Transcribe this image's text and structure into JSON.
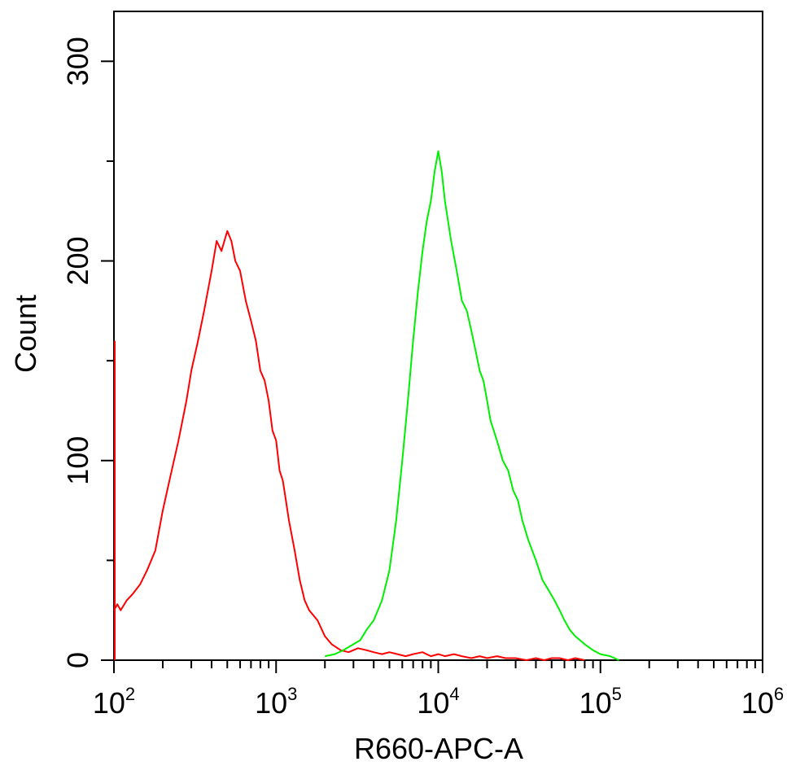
{
  "chart_data": {
    "type": "line",
    "title": "",
    "xlabel": "R660-APC-A",
    "ylabel": "Count",
    "x_scale": "log",
    "xlim": [
      100,
      1000000
    ],
    "ylim": [
      0,
      325
    ],
    "grid": false,
    "legend": "none",
    "x_ticks": [
      {
        "base": "10",
        "exp": "2",
        "value": 100
      },
      {
        "base": "10",
        "exp": "3",
        "value": 1000
      },
      {
        "base": "10",
        "exp": "4",
        "value": 10000
      },
      {
        "base": "10",
        "exp": "5",
        "value": 100000
      },
      {
        "base": "10",
        "exp": "6",
        "value": 1000000
      }
    ],
    "y_ticks": [
      {
        "label": "0",
        "value": 0
      },
      {
        "label": "100",
        "value": 100
      },
      {
        "label": "200",
        "value": 200
      },
      {
        "label": "300",
        "value": 300
      }
    ],
    "series": [
      {
        "color": "#ff0000",
        "x": [
          100,
          105,
          110,
          120,
          130,
          145,
          160,
          180,
          200,
          220,
          250,
          280,
          300,
          330,
          360,
          400,
          430,
          460,
          500,
          530,
          560,
          600,
          650,
          700,
          750,
          800,
          850,
          900,
          950,
          1000,
          1050,
          1100,
          1150,
          1200,
          1300,
          1400,
          1500,
          1600,
          1800,
          2000,
          2200,
          2500,
          2800,
          3200,
          3600,
          4000,
          4500,
          5000,
          5600,
          6300,
          7000,
          8000,
          9000,
          10000,
          11000,
          12500,
          14000,
          16000,
          18000,
          20000,
          23000,
          26000,
          30000,
          35000,
          40000,
          45000,
          50000,
          56000,
          63000,
          70000,
          80000
        ],
        "y": [
          25,
          28,
          25,
          30,
          33,
          38,
          45,
          55,
          75,
          90,
          110,
          130,
          145,
          160,
          175,
          195,
          210,
          205,
          215,
          210,
          200,
          195,
          180,
          170,
          160,
          145,
          140,
          130,
          115,
          110,
          95,
          90,
          80,
          70,
          55,
          40,
          30,
          25,
          20,
          12,
          8,
          5,
          4,
          6,
          5,
          4,
          3,
          4,
          3,
          2,
          3,
          4,
          2,
          3,
          2,
          3,
          2,
          1,
          2,
          1,
          2,
          1,
          1,
          0,
          1,
          0,
          1,
          1,
          0,
          1,
          0
        ]
      },
      {
        "color": "#00ee00",
        "x": [
          2000,
          2300,
          2600,
          3000,
          3300,
          3600,
          4000,
          4500,
          5000,
          5500,
          6000,
          6500,
          7000,
          7500,
          8000,
          8500,
          9000,
          9500,
          10000,
          10500,
          11000,
          12000,
          13000,
          14000,
          15000,
          16000,
          17000,
          18000,
          19000,
          20000,
          21000,
          22000,
          23000,
          25000,
          27000,
          29000,
          31000,
          33000,
          36000,
          40000,
          44000,
          48000,
          52000,
          56000,
          60000,
          65000,
          70000,
          80000,
          90000,
          100000,
          115000,
          130000
        ],
        "y": [
          2,
          3,
          5,
          8,
          10,
          15,
          20,
          30,
          45,
          70,
          100,
          130,
          160,
          185,
          205,
          220,
          230,
          245,
          255,
          245,
          230,
          210,
          195,
          180,
          175,
          165,
          155,
          145,
          140,
          130,
          120,
          115,
          110,
          100,
          95,
          85,
          80,
          70,
          60,
          50,
          40,
          35,
          30,
          25,
          20,
          15,
          12,
          8,
          5,
          3,
          2,
          0
        ]
      }
    ]
  }
}
